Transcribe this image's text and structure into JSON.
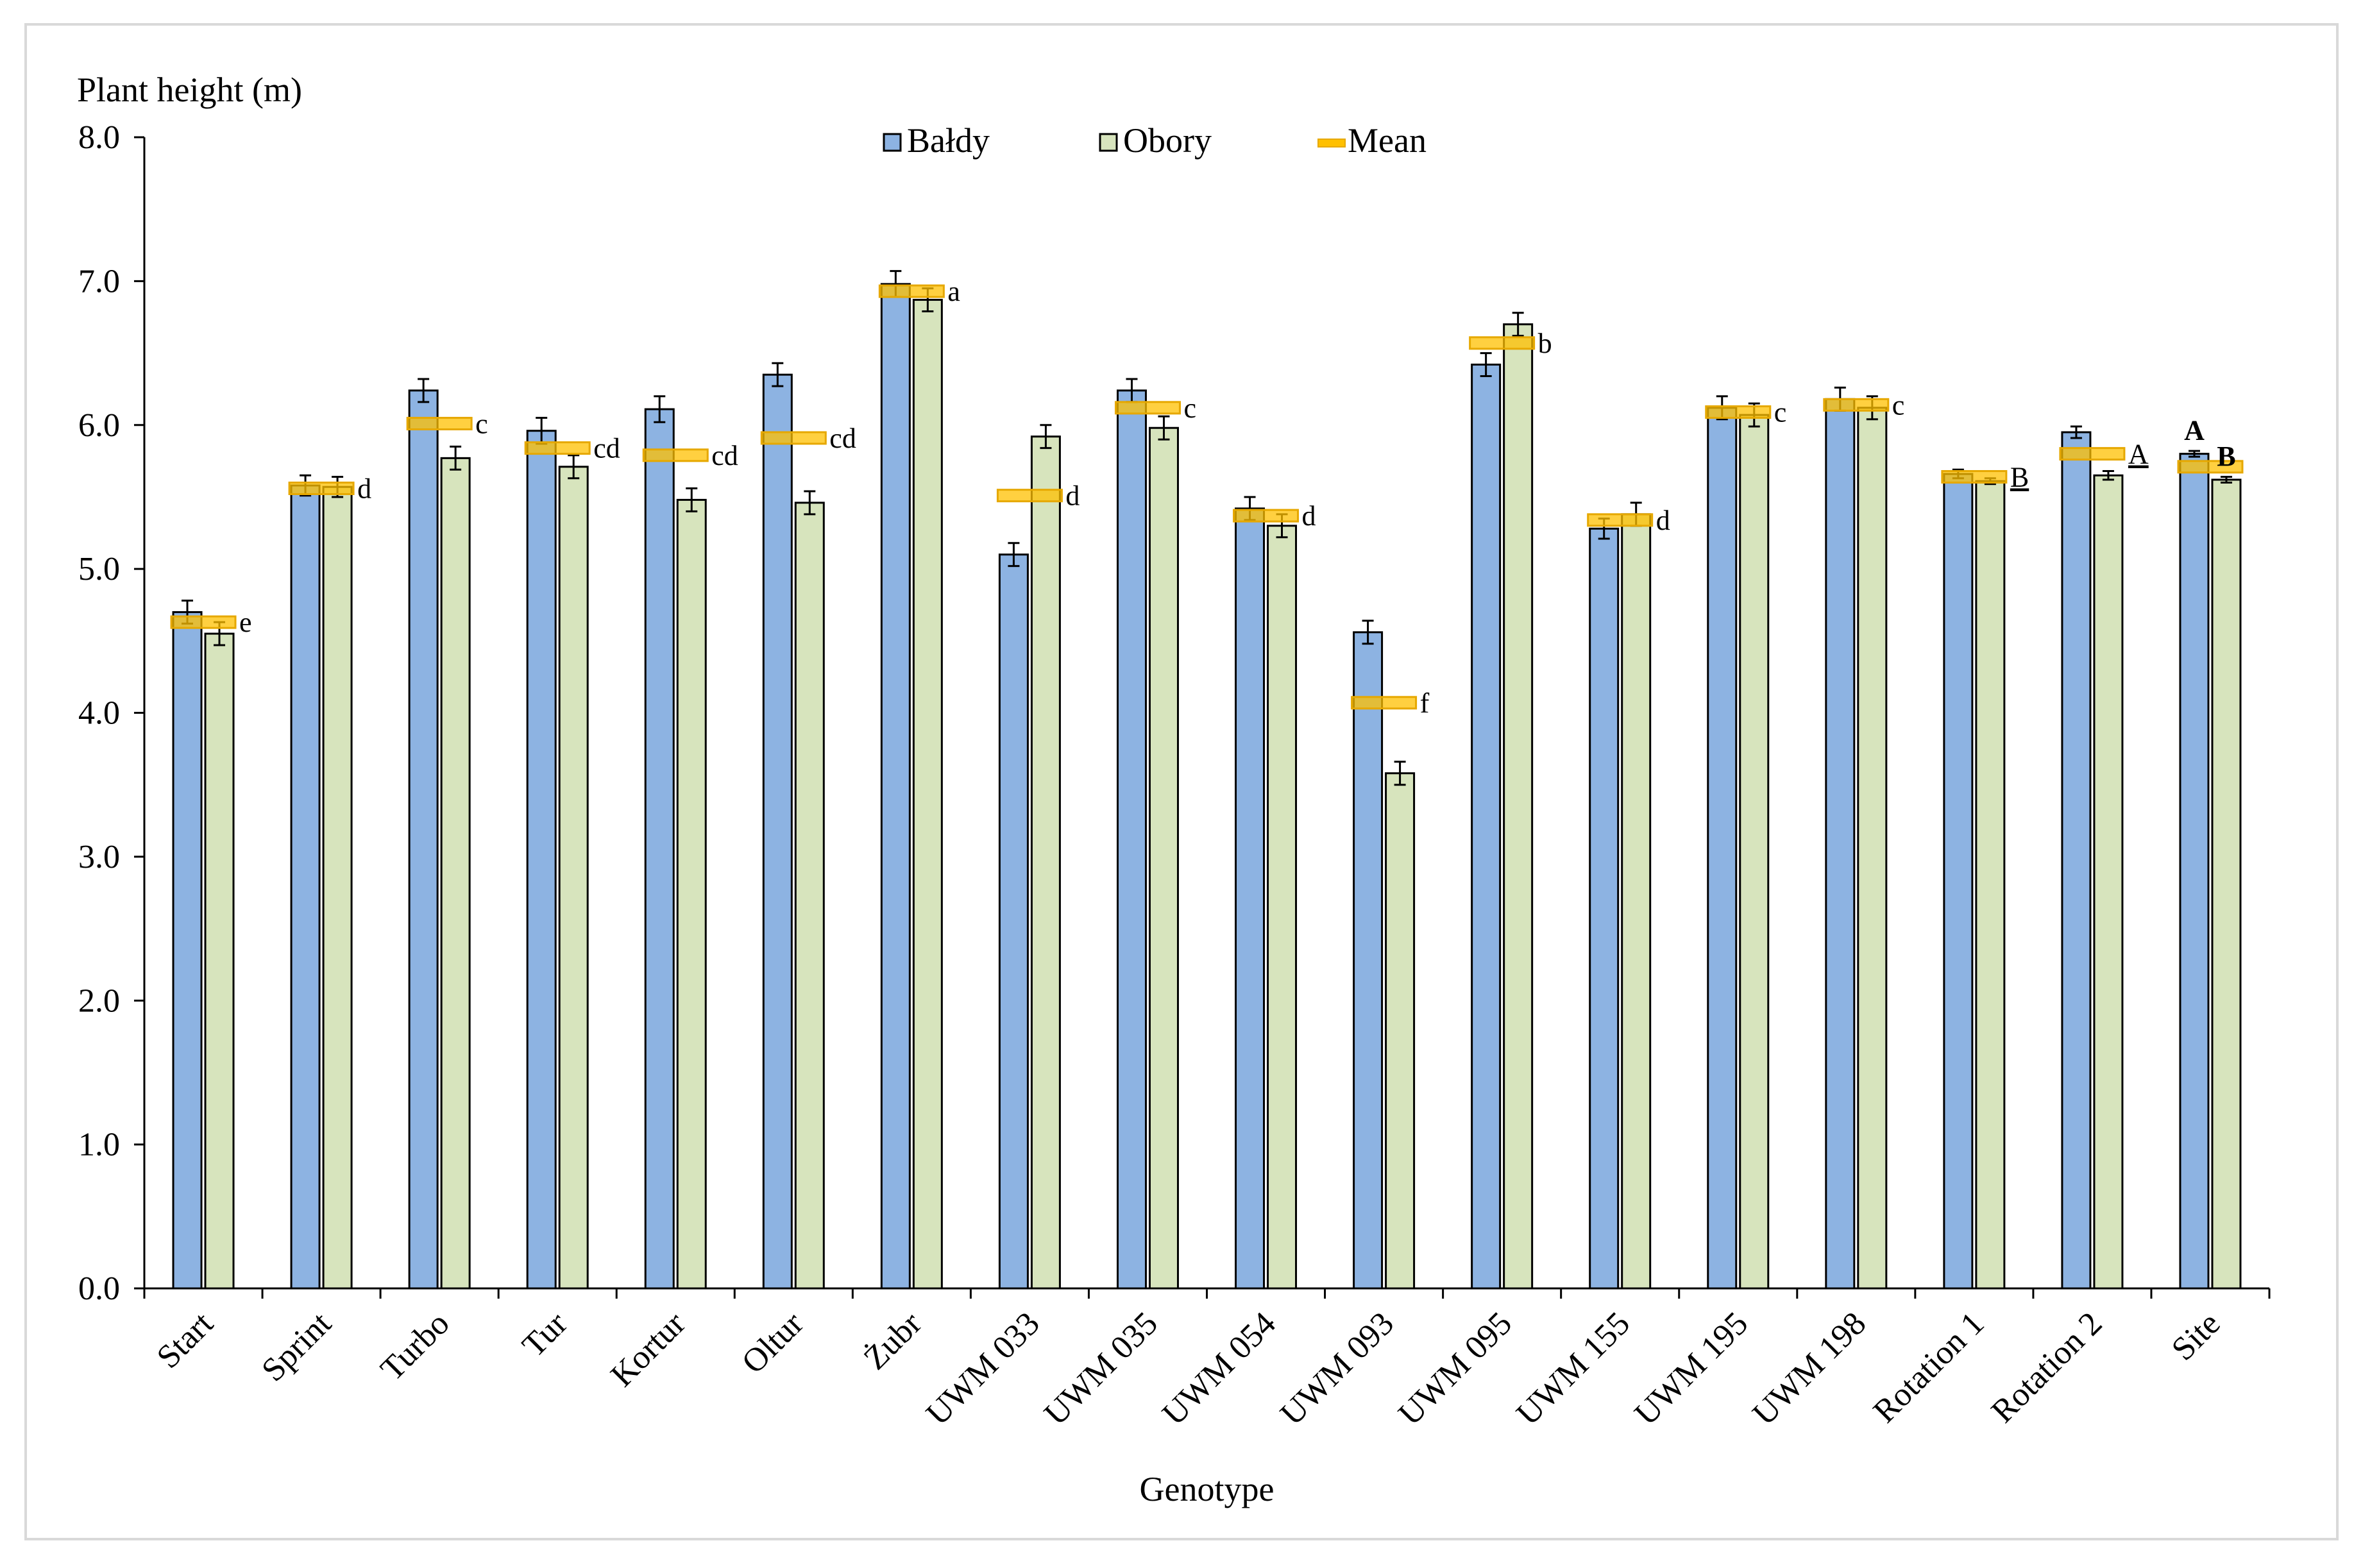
{
  "chart_data": {
    "type": "bar",
    "ylabel": "Plant height (m)",
    "xlabel": "Genotype",
    "ylim": [
      0,
      8
    ],
    "yticks": [
      "0.0",
      "1.0",
      "2.0",
      "3.0",
      "4.0",
      "5.0",
      "6.0",
      "7.0",
      "8.0"
    ],
    "categories": [
      "Start",
      "Sprint",
      "Turbo",
      "Tur",
      "Kortur",
      "Oltur",
      "Żubr",
      "UWM 033",
      "UWM 035",
      "UWM 054",
      "UWM 093",
      "UWM 095",
      "UWM 155",
      "UWM 195",
      "UWM 198",
      "Rotation 1",
      "Rotation 2",
      "Site"
    ],
    "series": [
      {
        "name": "Bałdy",
        "color": "#8db3e2",
        "values": [
          4.7,
          5.58,
          6.24,
          5.96,
          6.11,
          6.35,
          6.98,
          5.1,
          6.24,
          5.42,
          4.56,
          6.42,
          5.28,
          6.12,
          6.18,
          5.66,
          5.95,
          5.8
        ],
        "errors": [
          0.08,
          0.07,
          0.08,
          0.09,
          0.09,
          0.08,
          0.09,
          0.08,
          0.08,
          0.08,
          0.08,
          0.08,
          0.07,
          0.08,
          0.08,
          0.03,
          0.04,
          0.02
        ]
      },
      {
        "name": "Obory",
        "color": "#d7e4bd",
        "values": [
          4.55,
          5.57,
          5.77,
          5.71,
          5.48,
          5.46,
          6.87,
          5.92,
          5.98,
          5.3,
          3.58,
          6.7,
          5.38,
          6.07,
          6.12,
          5.61,
          5.65,
          5.62
        ],
        "errors": [
          0.08,
          0.07,
          0.08,
          0.08,
          0.08,
          0.08,
          0.08,
          0.08,
          0.08,
          0.08,
          0.08,
          0.08,
          0.08,
          0.08,
          0.08,
          0.02,
          0.03,
          0.02
        ]
      }
    ],
    "mean": {
      "name": "Mean",
      "color": "#ffc000",
      "values": [
        4.63,
        5.56,
        6.01,
        5.84,
        5.79,
        5.91,
        6.93,
        5.51,
        6.12,
        5.37,
        4.07,
        6.57,
        5.34,
        6.09,
        6.14,
        5.64,
        5.8,
        5.71
      ]
    },
    "significance_letters": [
      "e",
      "d",
      "c",
      "cd",
      "cd",
      "cd",
      "a",
      "d",
      "c",
      "d",
      "f",
      "b",
      "d",
      "c",
      "c",
      "B",
      "A",
      ""
    ],
    "site_letters": [
      "A",
      "B"
    ],
    "legend": [
      "Bałdy",
      "Obory",
      "Mean"
    ]
  }
}
